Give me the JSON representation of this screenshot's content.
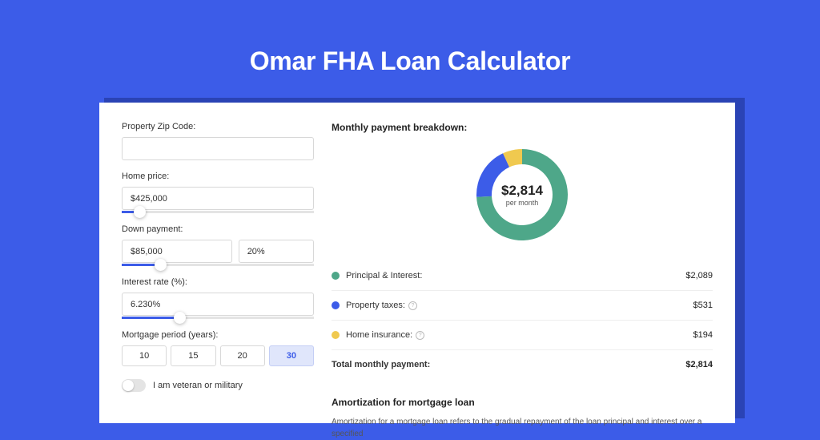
{
  "page": {
    "title": "Omar FHA Loan Calculator",
    "colors": {
      "page_bg": "#3c5ce8",
      "shadow": "#2a43b5",
      "card_bg": "#ffffff",
      "accent": "#3c5ce8"
    }
  },
  "form": {
    "zip": {
      "label": "Property Zip Code:",
      "value": ""
    },
    "home_price": {
      "label": "Home price:",
      "value": "$425,000",
      "slider_pct": 9
    },
    "down_payment": {
      "label": "Down payment:",
      "amount": "$85,000",
      "percent": "20%",
      "slider_pct": 20
    },
    "interest": {
      "label": "Interest rate (%):",
      "value": "6.230%",
      "slider_pct": 30
    },
    "period": {
      "label": "Mortgage period (years):",
      "options": [
        "10",
        "15",
        "20",
        "30"
      ],
      "selected": "30"
    },
    "veteran": {
      "label": "I am veteran or military",
      "on": false
    }
  },
  "breakdown": {
    "title": "Monthly payment breakdown:",
    "donut": {
      "value": "$2,814",
      "sub": "per month",
      "slices": [
        {
          "key": "principal_interest",
          "amount": 2089,
          "color": "#4ea789"
        },
        {
          "key": "taxes",
          "amount": 531,
          "color": "#3c5ce8"
        },
        {
          "key": "insurance",
          "amount": 194,
          "color": "#f0c94f"
        }
      ],
      "background": "#ffffff"
    },
    "items": [
      {
        "label": "Principal & Interest:",
        "value": "$2,089",
        "color": "#4ea789",
        "info": false
      },
      {
        "label": "Property taxes:",
        "value": "$531",
        "color": "#3c5ce8",
        "info": true
      },
      {
        "label": "Home insurance:",
        "value": "$194",
        "color": "#f0c94f",
        "info": true
      }
    ],
    "total": {
      "label": "Total monthly payment:",
      "value": "$2,814"
    }
  },
  "amortization": {
    "title": "Amortization for mortgage loan",
    "text": "Amortization for a mortgage loan refers to the gradual repayment of the loan principal and interest over a specified"
  }
}
